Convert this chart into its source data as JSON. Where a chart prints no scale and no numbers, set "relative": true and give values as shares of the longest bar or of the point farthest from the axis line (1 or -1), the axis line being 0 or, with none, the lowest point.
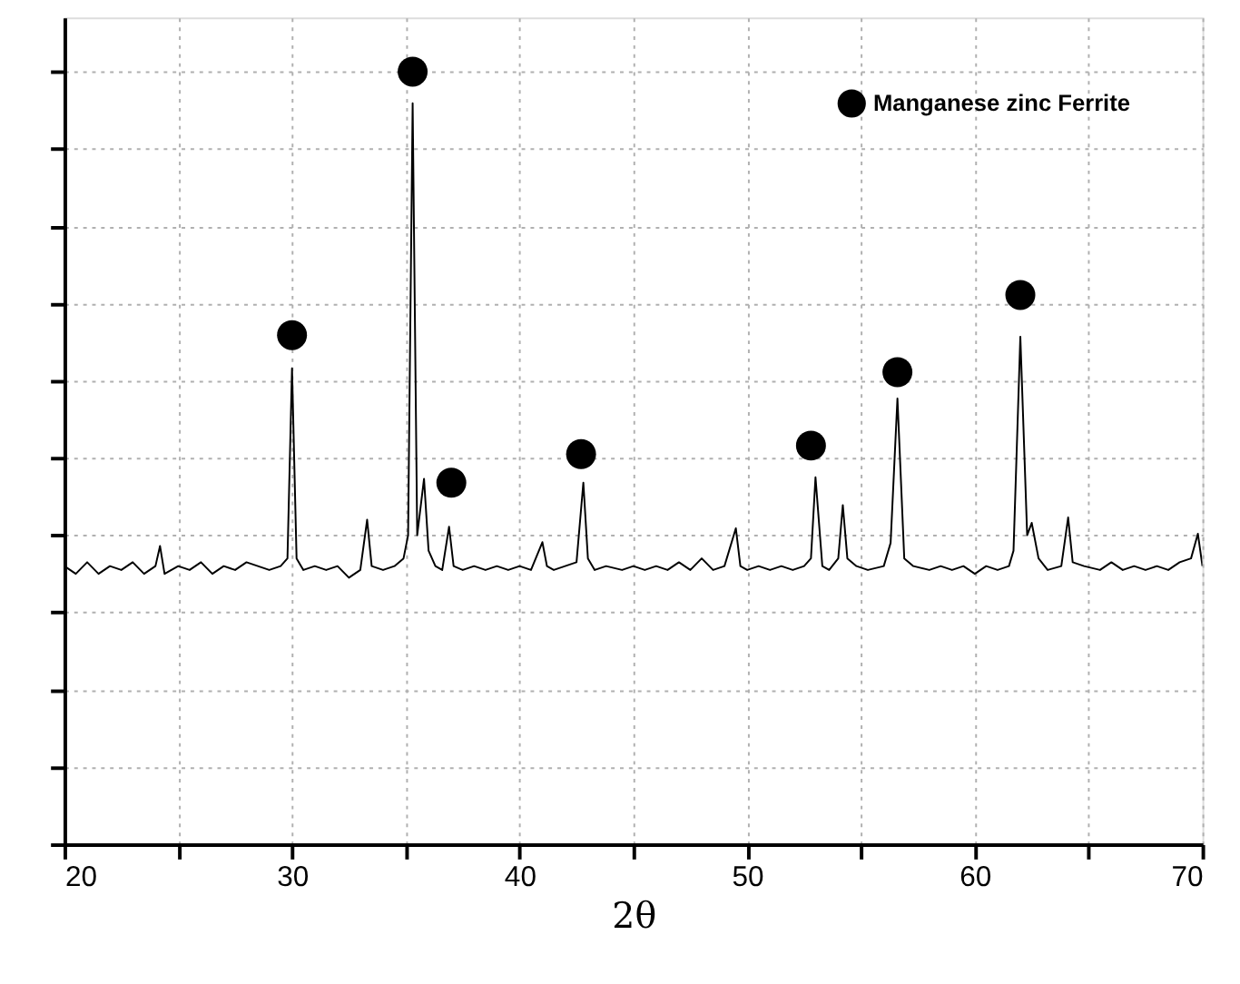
{
  "chart_data": {
    "type": "line",
    "xlabel": "2θ",
    "relative": true,
    "grid": true,
    "legend": "top right",
    "xlim": [
      20,
      70
    ],
    "xticks": [
      20,
      {
        "value": 25,
        "label": null
      },
      30,
      {
        "value": 35,
        "label": null
      },
      40,
      {
        "value": 45,
        "label": null
      },
      50,
      {
        "value": 55,
        "label": null
      },
      60,
      {
        "value": 65,
        "label": null
      },
      70
    ],
    "series": [
      {
        "color": "#000000",
        "line_style": "solid",
        "marker": "none",
        "x": [
          20,
          20.5,
          21,
          21.5,
          22,
          22.5,
          23,
          23.5,
          24,
          24.2,
          24.4,
          25,
          25.5,
          26,
          26.5,
          27,
          27.5,
          28,
          28.5,
          29,
          29.5,
          29.8,
          30,
          30.2,
          30.5,
          31,
          31.5,
          32,
          32.5,
          33,
          33.3,
          33.5,
          34,
          34.5,
          34.9,
          35.1,
          35.3,
          35.5,
          35.8,
          36,
          36.3,
          36.6,
          36.9,
          37.1,
          37.5,
          38,
          38.5,
          39,
          39.5,
          40,
          40.5,
          41,
          41.2,
          41.5,
          42,
          42.5,
          42.8,
          43,
          43.3,
          43.8,
          44.5,
          45,
          45.5,
          46,
          46.5,
          47,
          47.5,
          48,
          48.5,
          49,
          49.5,
          49.7,
          50,
          50.5,
          51,
          51.5,
          52,
          52.5,
          52.8,
          53,
          53.3,
          53.6,
          54,
          54.2,
          54.4,
          54.8,
          55.3,
          56,
          56.3,
          56.6,
          56.9,
          57.3,
          58,
          58.5,
          59,
          59.5,
          60,
          60.5,
          61,
          61.5,
          61.7,
          62,
          62.3,
          62.5,
          62.8,
          63.2,
          63.8,
          64.1,
          64.3,
          64.8,
          65.5,
          66,
          66.5,
          67,
          67.5,
          68,
          68.5,
          69,
          69.5,
          69.8,
          70
        ],
        "values": [
          0.36,
          0.35,
          0.365,
          0.35,
          0.36,
          0.355,
          0.365,
          0.35,
          0.36,
          0.386,
          0.35,
          0.36,
          0.355,
          0.365,
          0.35,
          0.36,
          0.355,
          0.365,
          0.36,
          0.355,
          0.36,
          0.37,
          0.616,
          0.37,
          0.355,
          0.36,
          0.355,
          0.36,
          0.345,
          0.355,
          0.42,
          0.36,
          0.355,
          0.36,
          0.37,
          0.4,
          0.959,
          0.4,
          0.473,
          0.38,
          0.36,
          0.355,
          0.411,
          0.36,
          0.355,
          0.36,
          0.355,
          0.36,
          0.355,
          0.36,
          0.355,
          0.391,
          0.36,
          0.355,
          0.36,
          0.365,
          0.468,
          0.37,
          0.355,
          0.36,
          0.355,
          0.36,
          0.355,
          0.36,
          0.355,
          0.365,
          0.355,
          0.37,
          0.355,
          0.36,
          0.409,
          0.36,
          0.355,
          0.36,
          0.355,
          0.36,
          0.355,
          0.36,
          0.37,
          0.475,
          0.36,
          0.355,
          0.37,
          0.439,
          0.37,
          0.36,
          0.355,
          0.36,
          0.39,
          0.577,
          0.37,
          0.36,
          0.355,
          0.36,
          0.355,
          0.36,
          0.35,
          0.36,
          0.355,
          0.36,
          0.38,
          0.657,
          0.4,
          0.416,
          0.37,
          0.355,
          0.36,
          0.423,
          0.365,
          0.36,
          0.355,
          0.365,
          0.355,
          0.36,
          0.355,
          0.36,
          0.355,
          0.365,
          0.37,
          0.402,
          0.36
        ]
      },
      {
        "type": "scatter",
        "name": "Manganese zinc Ferrite",
        "color": "#000000",
        "marker": "circle",
        "x": [
          30,
          35.3,
          37,
          42.7,
          52.8,
          56.6,
          62
        ],
        "values": [
          0.659,
          1.0,
          0.468,
          0.505,
          0.516,
          0.611,
          0.711
        ]
      }
    ]
  }
}
